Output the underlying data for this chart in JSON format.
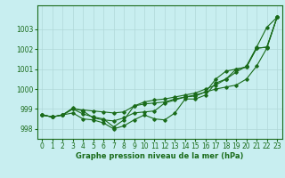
{
  "xlabel": "Graphe pression niveau de la mer (hPa)",
  "background_color": "#c8eef0",
  "line_color": "#1a6b1a",
  "grid_color": "#b0d8d8",
  "ylim": [
    997.5,
    1004.2
  ],
  "xlim": [
    -0.5,
    23.5
  ],
  "yticks": [
    998,
    999,
    1000,
    1001,
    1002,
    1003
  ],
  "xticks": [
    0,
    1,
    2,
    3,
    4,
    5,
    6,
    7,
    8,
    9,
    10,
    11,
    12,
    13,
    14,
    15,
    16,
    17,
    18,
    19,
    20,
    21,
    22,
    23
  ],
  "series": [
    [
      998.7,
      998.6,
      998.7,
      998.8,
      998.5,
      998.45,
      998.3,
      998.0,
      998.15,
      998.45,
      998.7,
      998.5,
      998.45,
      998.8,
      999.5,
      999.5,
      999.7,
      1000.3,
      1000.5,
      1000.85,
      1001.15,
      1002.1,
      1003.1,
      1003.6
    ],
    [
      998.7,
      998.6,
      998.7,
      999.0,
      998.75,
      998.6,
      998.5,
      998.1,
      998.45,
      999.15,
      999.25,
      999.3,
      999.35,
      999.5,
      999.6,
      999.7,
      999.85,
      1000.0,
      1000.1,
      1000.2,
      1000.5,
      1001.15,
      1002.05,
      1003.6
    ],
    [
      998.7,
      998.6,
      998.7,
      999.0,
      998.95,
      998.9,
      998.85,
      998.8,
      998.85,
      999.15,
      999.35,
      999.45,
      999.5,
      999.6,
      999.7,
      999.8,
      1000.0,
      1000.2,
      1000.5,
      1001.0,
      1001.1,
      1002.05,
      1002.1,
      1003.6
    ],
    [
      998.7,
      998.6,
      998.7,
      999.05,
      998.9,
      998.55,
      998.45,
      998.4,
      998.55,
      998.8,
      998.85,
      998.9,
      999.3,
      999.45,
      999.6,
      999.65,
      999.85,
      1000.5,
      1000.9,
      1001.0,
      1001.1,
      1002.05,
      1002.1,
      1003.6
    ]
  ],
  "tick_fontsize": 5.5,
  "xlabel_fontsize": 6.0
}
